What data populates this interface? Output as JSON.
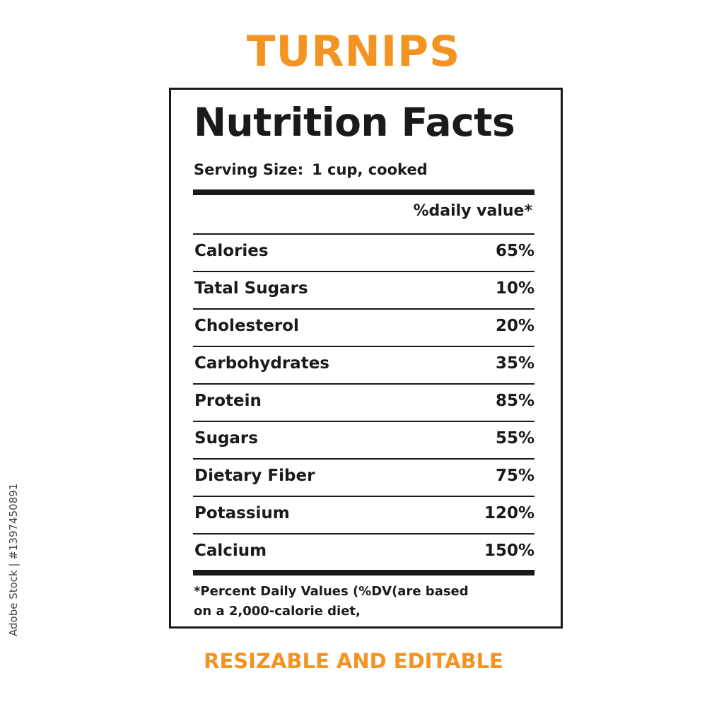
{
  "title": "TURNIPS",
  "label": {
    "heading": "Nutrition Facts",
    "serving_label": "Serving Size:",
    "serving_value": "1 cup, cooked",
    "dv_header": "%daily value*",
    "rows": [
      {
        "name": "Calories",
        "pct": "65%"
      },
      {
        "name": "Tatal Sugars",
        "pct": "10%"
      },
      {
        "name": "Cholesterol",
        "pct": "20%"
      },
      {
        "name": "Carbohydrates",
        "pct": "35%"
      },
      {
        "name": "Protein",
        "pct": "85%"
      },
      {
        "name": "Sugars",
        "pct": "55%"
      },
      {
        "name": "Dietary Fiber",
        "pct": "75%"
      },
      {
        "name": "Potassium",
        "pct": "120%"
      },
      {
        "name": "Calcium",
        "pct": "150%"
      }
    ],
    "footnote_line1": "*Percent Daily Values (%DV(are  based",
    "footnote_line2": "on a 2,000-calorie diet,"
  },
  "subtitle": "RESIZABLE AND EDITABLE",
  "stock_id": "Adobe Stock | #1397450891",
  "colors": {
    "accent": "#f39322",
    "ink": "#1a1a1a"
  }
}
